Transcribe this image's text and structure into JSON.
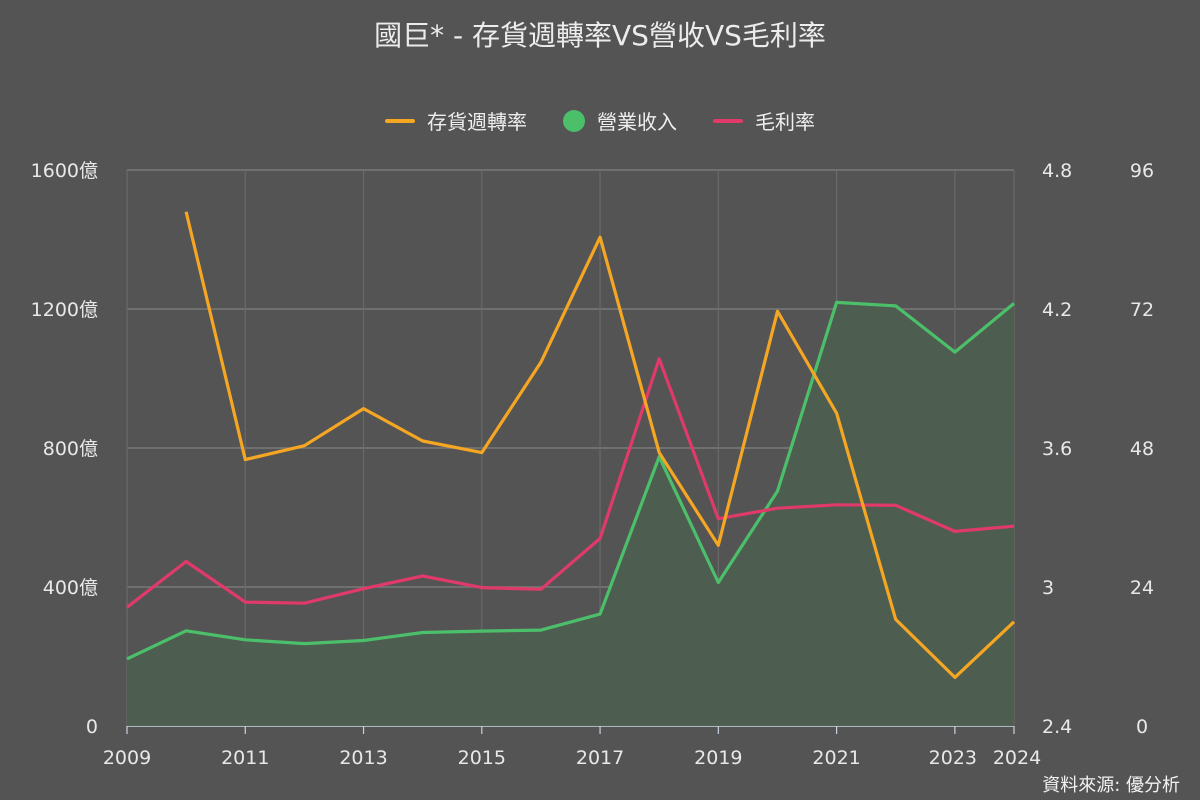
{
  "chart_data": {
    "type": "line",
    "title": "國巨* - 存貨週轉率VS營收VS毛利率",
    "source": "資料來源: 優分析",
    "x": [
      2009,
      2010,
      2011,
      2012,
      2013,
      2014,
      2015,
      2016,
      2017,
      2018,
      2019,
      2020,
      2021,
      2022,
      2023,
      2024
    ],
    "x_tick_labels": [
      "2009",
      "2011",
      "2013",
      "2015",
      "2017",
      "2019",
      "2021",
      "2023",
      "2024"
    ],
    "legend_position": "top-center",
    "grid": true,
    "axes": {
      "left": {
        "ylim": [
          0,
          1600
        ],
        "ticks": [
          0,
          400,
          800,
          1200,
          1600
        ],
        "tick_labels": [
          "0",
          "400億",
          "800億",
          "1200億",
          "1600億"
        ]
      },
      "right1": {
        "ylim": [
          2.4,
          4.8
        ],
        "ticks": [
          2.4,
          3,
          3.6,
          4.2,
          4.8
        ],
        "tick_labels": [
          "2.4",
          "3",
          "3.6",
          "4.2",
          "4.8"
        ]
      },
      "right2": {
        "ylim": [
          0,
          96
        ],
        "ticks": [
          0,
          24,
          48,
          72,
          96
        ],
        "tick_labels": [
          "0",
          "24",
          "48",
          "72",
          "96"
        ]
      }
    },
    "series": [
      {
        "name": "存貨週轉率",
        "kind": "line",
        "axis": "right1",
        "color": "#f5a623",
        "values": [
          null,
          4.62,
          3.55,
          3.61,
          3.77,
          3.63,
          3.58,
          3.97,
          4.51,
          3.58,
          3.18,
          4.19,
          3.75,
          2.86,
          2.61,
          2.85
        ]
      },
      {
        "name": "營業收入",
        "kind": "area",
        "axis": "left",
        "color": "#4cbf6b",
        "fill": "#4d5e50",
        "values": [
          193,
          274,
          248,
          237,
          246,
          269,
          273,
          276,
          322,
          775,
          413,
          676,
          1219,
          1209,
          1076,
          1216
        ]
      },
      {
        "name": "毛利率",
        "kind": "line",
        "axis": "right2",
        "color": "#e03a6b",
        "values": [
          20.5,
          28.4,
          21.4,
          21.2,
          23.7,
          25.9,
          23.9,
          23.6,
          32.4,
          63.4,
          35.8,
          37.6,
          38.2,
          38.1,
          33.6,
          34.5
        ]
      }
    ]
  }
}
